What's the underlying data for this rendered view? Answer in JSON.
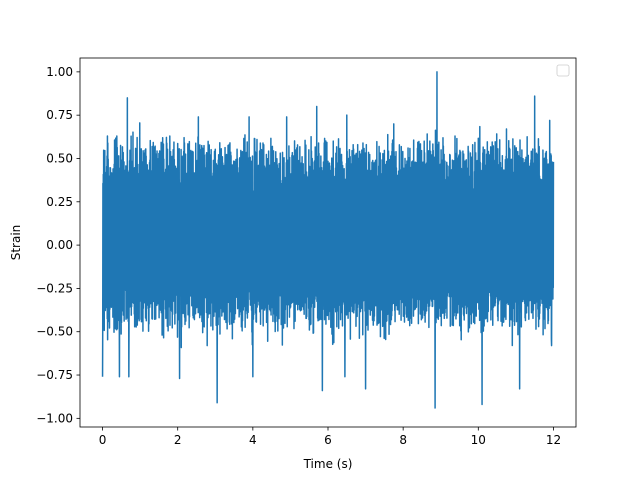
{
  "chart_data": {
    "type": "line",
    "title": "",
    "xlabel": "Time (s)",
    "ylabel": "Strain",
    "xlim": [
      -0.6,
      12.6
    ],
    "ylim": [
      -1.05,
      1.08
    ],
    "x_ticks": [
      0,
      2,
      4,
      6,
      8,
      10,
      12
    ],
    "x_tick_labels": [
      "0",
      "2",
      "4",
      "6",
      "8",
      "10",
      "12"
    ],
    "y_ticks": [
      -1.0,
      -0.75,
      -0.5,
      -0.25,
      0.0,
      0.25,
      0.5,
      0.75,
      1.0
    ],
    "y_tick_labels": [
      "−1.00",
      "−0.75",
      "−0.50",
      "−0.25",
      "0.00",
      "0.25",
      "0.50",
      "0.75",
      "1.00"
    ],
    "grid": false,
    "legend": {
      "placement": "upper-right",
      "entries": []
    },
    "series": [
      {
        "color": "#1f77b4",
        "x_start": 0,
        "x_end": 12,
        "typical_range": [
          -0.45,
          0.55
        ],
        "peaks": [
          {
            "x": 0.05,
            "y": 0.47
          },
          {
            "x": 0.13,
            "y": 0.63
          },
          {
            "x": 0.38,
            "y": 0.63
          },
          {
            "x": 0.66,
            "y": 0.85
          },
          {
            "x": 1.6,
            "y": 0.62
          },
          {
            "x": 2.55,
            "y": 0.74
          },
          {
            "x": 3.9,
            "y": 0.74
          },
          {
            "x": 4.9,
            "y": 0.74
          },
          {
            "x": 5.7,
            "y": 0.8
          },
          {
            "x": 6.5,
            "y": 0.75
          },
          {
            "x": 7.75,
            "y": 0.7
          },
          {
            "x": 8.9,
            "y": 1.0
          },
          {
            "x": 10.75,
            "y": 0.67
          },
          {
            "x": 11.5,
            "y": 0.86
          },
          {
            "x": 11.9,
            "y": 0.72
          }
        ],
        "troughs": [
          {
            "x": 0.0,
            "y": -0.76
          },
          {
            "x": 0.45,
            "y": -0.76
          },
          {
            "x": 0.7,
            "y": -0.76
          },
          {
            "x": 2.05,
            "y": -0.77
          },
          {
            "x": 3.05,
            "y": -0.91
          },
          {
            "x": 4.0,
            "y": -0.76
          },
          {
            "x": 5.85,
            "y": -0.84
          },
          {
            "x": 6.45,
            "y": -0.76
          },
          {
            "x": 7.0,
            "y": -0.83
          },
          {
            "x": 8.85,
            "y": -0.94
          },
          {
            "x": 10.1,
            "y": -0.92
          },
          {
            "x": 11.1,
            "y": -0.83
          },
          {
            "x": 11.95,
            "y": -0.58
          }
        ]
      }
    ]
  }
}
